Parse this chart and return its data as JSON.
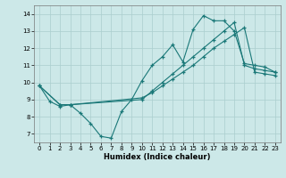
{
  "xlabel": "Humidex (Indice chaleur)",
  "xlim": [
    -0.5,
    23.5
  ],
  "ylim": [
    6.5,
    14.5
  ],
  "yticks": [
    7,
    8,
    9,
    10,
    11,
    12,
    13,
    14
  ],
  "xticks": [
    0,
    1,
    2,
    3,
    4,
    5,
    6,
    7,
    8,
    9,
    10,
    11,
    12,
    13,
    14,
    15,
    16,
    17,
    18,
    19,
    20,
    21,
    22,
    23
  ],
  "background_color": "#cce8e8",
  "grid_color": "#aacece",
  "line_color": "#1a7878",
  "line1_x": [
    0,
    1,
    2,
    3,
    4,
    5,
    6,
    7,
    8,
    9,
    10,
    11,
    12,
    13,
    14,
    15,
    16,
    17,
    18,
    19,
    20,
    21,
    22,
    23
  ],
  "line1_y": [
    9.8,
    8.9,
    8.6,
    8.7,
    8.2,
    7.6,
    6.85,
    6.75,
    8.3,
    9.0,
    10.1,
    11.0,
    11.5,
    12.2,
    11.2,
    13.1,
    13.9,
    13.6,
    13.6,
    13.0,
    11.1,
    11.0,
    10.9,
    10.6
  ],
  "line2_x": [
    0,
    2,
    3,
    10,
    11,
    12,
    13,
    14,
    15,
    16,
    17,
    18,
    19,
    20,
    21,
    22,
    23
  ],
  "line2_y": [
    9.8,
    8.7,
    8.7,
    9.0,
    9.5,
    10.0,
    10.5,
    11.0,
    11.5,
    12.0,
    12.5,
    13.0,
    13.5,
    11.0,
    10.8,
    10.7,
    10.6
  ],
  "line3_x": [
    0,
    2,
    3,
    10,
    11,
    12,
    13,
    14,
    15,
    16,
    17,
    18,
    19,
    20,
    21,
    22,
    23
  ],
  "line3_y": [
    9.8,
    8.7,
    8.7,
    9.1,
    9.4,
    9.8,
    10.2,
    10.6,
    11.0,
    11.5,
    12.0,
    12.4,
    12.8,
    13.2,
    10.6,
    10.5,
    10.4
  ]
}
